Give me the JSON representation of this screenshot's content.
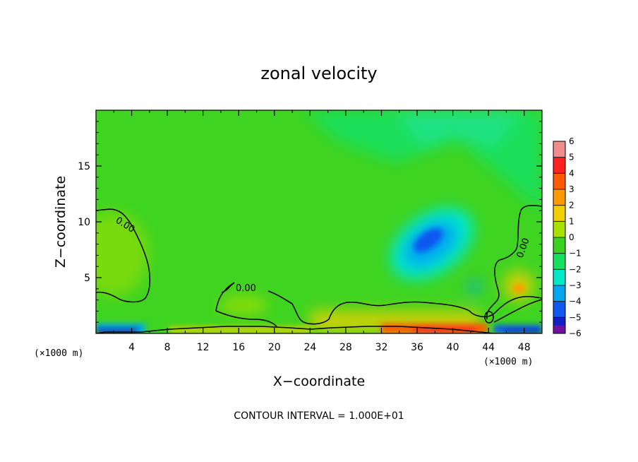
{
  "chart_data": {
    "type": "heatmap",
    "title": "zonal velocity",
    "xlabel": "X−coordinate",
    "ylabel": "Z−coordinate",
    "x_unit_left": "(×1000 m)",
    "x_unit_right": "(×1000 m)",
    "xlim": [
      0,
      50
    ],
    "ylim": [
      0,
      20
    ],
    "x_ticks": [
      4,
      8,
      12,
      16,
      20,
      24,
      28,
      32,
      36,
      40,
      44,
      48
    ],
    "y_ticks": [
      5,
      10,
      15
    ],
    "colorbar": {
      "levels": [
        6,
        5,
        4,
        3,
        2,
        1,
        0,
        -1,
        -2,
        -3,
        -4,
        -5,
        -6
      ],
      "labels": [
        "6",
        "5",
        "4",
        "3",
        "2",
        "1",
        "0",
        "−1",
        "−2",
        "−3",
        "−4",
        "−5",
        "−6"
      ],
      "colors": [
        "#f08c8c",
        "#ff2020",
        "#ff5a00",
        "#ff9a00",
        "#f0d000",
        "#a8e000",
        "#3ad21e",
        "#16e060",
        "#00e8c8",
        "#00a8f0",
        "#1058f0",
        "#1020c8",
        "#7010a0"
      ]
    },
    "contour_label": "0.00",
    "contour_interval_text": "CONTOUR INTERVAL = 1.000E+01",
    "field_features": [
      {
        "x": 37.5,
        "z": 8.5,
        "value": -3.5
      },
      {
        "x": 2,
        "z": 8,
        "value": 1.0
      },
      {
        "x": 16.5,
        "z": 2.3,
        "value": 1.0
      },
      {
        "x": 47,
        "z": 4,
        "value": 2.5
      },
      {
        "x": 42.5,
        "z": 4.2,
        "value": -2.5
      },
      {
        "x": 24,
        "z": 16,
        "value": 0.0
      },
      {
        "x": 38,
        "z": 0.3,
        "value": 4.0
      },
      {
        "x": 1,
        "z": 0.3,
        "value": -4.0
      }
    ]
  }
}
